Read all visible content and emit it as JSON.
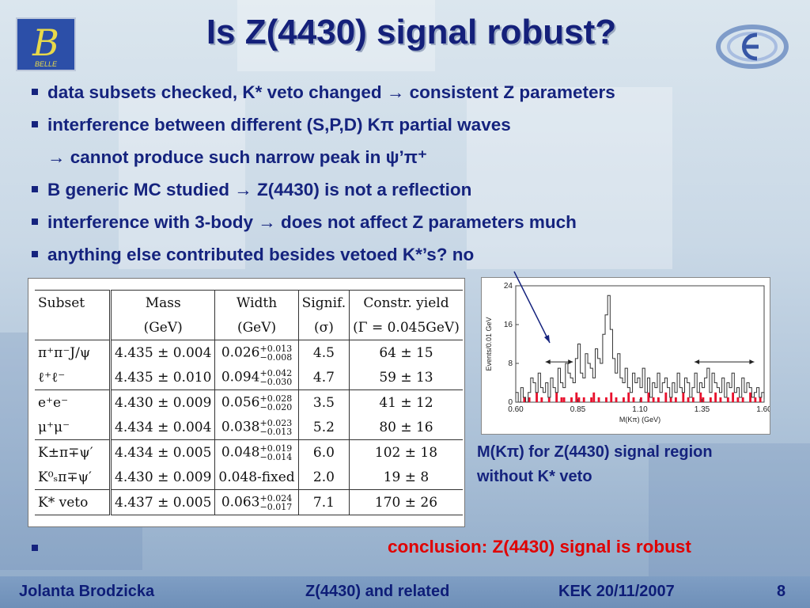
{
  "slide": {
    "title": "Is Z(4430) signal robust?",
    "logo_left_text": "BELLE",
    "bullets": [
      "data subsets checked, K* veto changed → consistent Z parameters",
      "interference between different (S,P,D) Kπ partial waves",
      "→ cannot produce such narrow peak in ψ’π⁺",
      "B generic MC studied → Z(4430) is not a reflection",
      "interference with 3-body → does not affect Z parameters much",
      "anything else contributed besides vetoed K*’s? no"
    ],
    "caption_lines": [
      "M(Kπ) for Z(4430) signal region",
      "without K* veto"
    ],
    "conclusion": "conclusion: Z(4430) signal is robust",
    "footer": {
      "author": "Jolanta Brodzicka",
      "talk": "Z(4430) and related",
      "venue": "KEK 20/11/2007",
      "page": "8"
    }
  },
  "table": {
    "headers": [
      "Subset",
      "Mass",
      "Width",
      "Signif.",
      "Constr. yield"
    ],
    "units": [
      "",
      "(GeV)",
      "(GeV)",
      "(σ)",
      "(Γ = 0.045GeV)"
    ],
    "rows": [
      {
        "subset": "π⁺π⁻J/ψ",
        "mass": "4.435 ± 0.004",
        "width": "0.026",
        "width_up": "+0.013",
        "width_dn": "−0.008",
        "signif": "4.5",
        "yield": "64 ± 15"
      },
      {
        "subset": "ℓ⁺ℓ⁻",
        "mass": "4.435 ± 0.010",
        "width": "0.094",
        "width_up": "+0.042",
        "width_dn": "−0.030",
        "signif": "4.7",
        "yield": "59 ± 13"
      },
      {
        "subset": "e⁺e⁻",
        "mass": "4.430 ± 0.009",
        "width": "0.056",
        "width_up": "+0.028",
        "width_dn": "−0.020",
        "signif": "3.5",
        "yield": "41 ± 12"
      },
      {
        "subset": "μ⁺μ⁻",
        "mass": "4.434 ± 0.004",
        "width": "0.038",
        "width_up": "+0.023",
        "width_dn": "−0.013",
        "signif": "5.2",
        "yield": "80 ± 16"
      },
      {
        "subset": "K±π∓ψ′",
        "mass": "4.434 ± 0.005",
        "width": "0.048",
        "width_up": "+0.019",
        "width_dn": "−0.014",
        "signif": "6.0",
        "yield": "102 ± 18"
      },
      {
        "subset": "K⁰ₛπ∓ψ′",
        "mass": "4.430 ± 0.009",
        "width": "0.048-fixed",
        "width_up": "",
        "width_dn": "",
        "signif": "2.0",
        "yield": "19 ± 8"
      },
      {
        "subset": "K* veto",
        "mass": "4.437 ± 0.005",
        "width": "0.063",
        "width_up": "+0.024",
        "width_dn": "−0.017",
        "signif": "7.1",
        "yield": "170 ± 26"
      }
    ]
  },
  "chart_data": {
    "type": "bar",
    "xlabel": "M(Kπ) (GeV)",
    "ylabel": "Events/0.01 GeV",
    "xlim": [
      0.6,
      1.6
    ],
    "ylim": [
      0,
      24
    ],
    "xticks": [
      "0.60",
      "0.85",
      "1.10",
      "1.35",
      "1.60"
    ],
    "yticks": [
      "0",
      "8",
      "16",
      "24"
    ],
    "bin_start": 0.6,
    "bin_width": 0.01,
    "signal": [
      2,
      0,
      3,
      1,
      0,
      2,
      5,
      4,
      2,
      6,
      3,
      2,
      4,
      1,
      5,
      3,
      2,
      7,
      4,
      3,
      8,
      6,
      5,
      4,
      9,
      12,
      6,
      5,
      10,
      8,
      7,
      5,
      11,
      9,
      8,
      14,
      18,
      22,
      15,
      9,
      6,
      10,
      5,
      4,
      7,
      3,
      2,
      6,
      4,
      5,
      3,
      7,
      2,
      5,
      1,
      4,
      3,
      6,
      2,
      4,
      5,
      3,
      1,
      4,
      2,
      6,
      3,
      2,
      5,
      4,
      1,
      3,
      6,
      2,
      4,
      3,
      5,
      7,
      2,
      6,
      4,
      3,
      2,
      5,
      1,
      4,
      3,
      6,
      2,
      3,
      1,
      5,
      2,
      4,
      3,
      1,
      2,
      3,
      1,
      2
    ],
    "background": [
      0,
      0,
      0,
      1,
      0,
      1,
      0,
      0,
      2,
      0,
      1,
      0,
      0,
      1,
      0,
      0,
      2,
      0,
      1,
      1,
      0,
      0,
      1,
      0,
      2,
      1,
      0,
      1,
      0,
      0,
      1,
      2,
      0,
      1,
      0,
      0,
      1,
      0,
      2,
      0,
      1,
      0,
      0,
      1,
      0,
      2,
      0,
      1,
      0,
      0,
      1,
      0,
      0,
      2,
      0,
      1,
      0,
      1,
      0,
      0,
      2,
      0,
      1,
      0,
      1,
      0,
      0,
      2,
      0,
      1,
      0,
      1,
      0,
      0,
      2,
      1,
      0,
      0,
      1,
      0,
      2,
      0,
      1,
      0,
      0,
      1,
      0,
      2,
      0,
      1,
      0,
      1,
      0,
      0,
      2,
      0,
      1,
      0,
      1,
      0
    ],
    "colors": {
      "signal": "#333333",
      "background": "#e8112d"
    }
  }
}
